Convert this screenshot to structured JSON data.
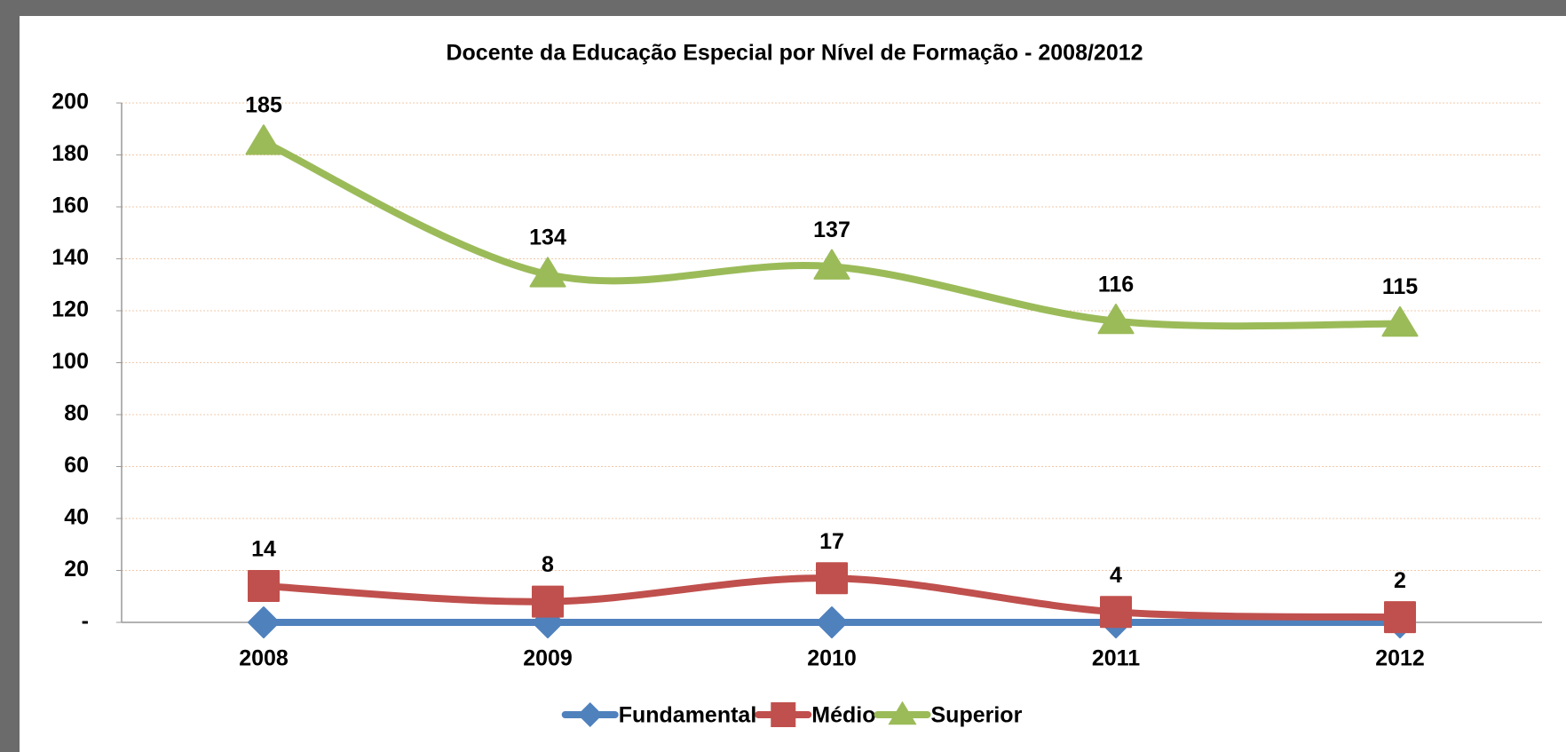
{
  "chart_data": {
    "type": "line",
    "title": "Docente da Educação Especial por Nível de Formação - 2008/2012",
    "categories": [
      "2008",
      "2009",
      "2010",
      "2011",
      "2012"
    ],
    "series": [
      {
        "name": "Fundamental",
        "color": "#4f81bd",
        "marker": "diamond",
        "show_labels": false,
        "values": [
          0,
          0,
          0,
          0,
          0
        ]
      },
      {
        "name": "Médio",
        "color": "#c0504d",
        "marker": "square",
        "show_labels": true,
        "values": [
          14,
          8,
          17,
          4,
          2
        ]
      },
      {
        "name": "Superior",
        "color": "#9bbb59",
        "marker": "triangle",
        "show_labels": true,
        "values": [
          185,
          134,
          137,
          116,
          115
        ]
      }
    ],
    "ylim": [
      0,
      200
    ],
    "yticks": [
      {
        "value": 0,
        "label": "-"
      },
      20,
      40,
      60,
      80,
      100,
      120,
      140,
      160,
      180,
      200
    ],
    "grid": true,
    "smooth": true,
    "legend": "bottom"
  }
}
